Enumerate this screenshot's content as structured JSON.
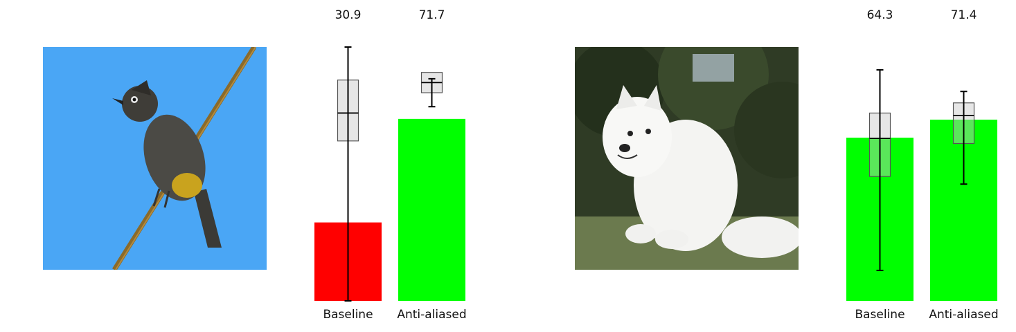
{
  "chart_data": [
    {
      "type": "bar",
      "categories": [
        "Baseline",
        "Anti-aliased"
      ],
      "values": [
        30.9,
        71.7
      ],
      "value_labels": [
        "30.9",
        "71.7"
      ],
      "bar_colors": [
        "#ff0000",
        "#00ff00"
      ],
      "ylim": [
        0,
        100
      ],
      "whiskers": [
        [
          0,
          100
        ],
        [
          76.5,
          87.5
        ]
      ],
      "boxes": [
        {
          "q1": 63,
          "median": 74,
          "q3": 87
        },
        {
          "q1": 82,
          "median": 86,
          "q3": 90
        }
      ],
      "title": "",
      "xlabel": "",
      "ylabel": ""
    },
    {
      "type": "bar",
      "categories": [
        "Baseline",
        "Anti-aliased"
      ],
      "values": [
        64.3,
        71.4
      ],
      "value_labels": [
        "64.3",
        "71.4"
      ],
      "bar_colors": [
        "#00ff00",
        "#00ff00"
      ],
      "ylim": [
        0,
        100
      ],
      "whiskers": [
        [
          12,
          91
        ],
        [
          46,
          82.5
        ]
      ],
      "boxes": [
        {
          "q1": 49,
          "median": 64,
          "q3": 74
        },
        {
          "q1": 62,
          "median": 73,
          "q3": 78
        }
      ],
      "title": "",
      "xlabel": "",
      "ylabel": ""
    }
  ],
  "images": [
    {
      "subject": "bird-perched-on-branch-photo",
      "sky_color": "#4aa6f5"
    },
    {
      "subject": "white-samoyed-dog-photo",
      "grass_color": "#6b7a4e"
    }
  ]
}
